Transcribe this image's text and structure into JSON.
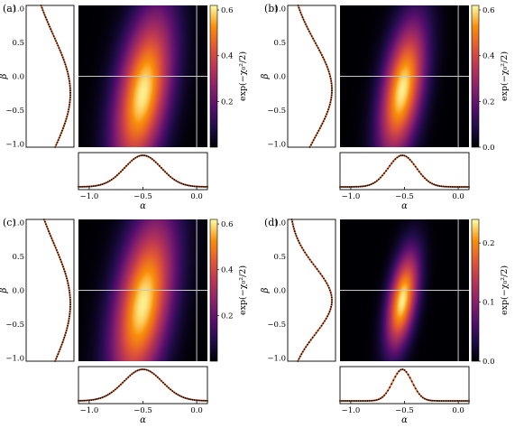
{
  "figure": {
    "shared": {
      "heatmap_ylabel": "β",
      "bottom_xlabel": "α",
      "colorbar_label": "exp(−χ₀²/2)",
      "alpha_ticks": [
        "−1.0",
        "−0.5",
        "0.0"
      ],
      "beta_ticks": [
        "1.0",
        "0.5",
        "0.0",
        "−0.5",
        "−1.0"
      ]
    },
    "panels": [
      {
        "label": "(a)",
        "cb_max": 0.62,
        "cb_ticks": [
          "0.6",
          "0.4",
          "0.2"
        ],
        "cb_values": [
          0.6,
          0.4,
          0.2
        ],
        "peak_alpha": -0.5,
        "peak_beta": -0.25,
        "sigma_alpha": 0.17,
        "sigma_beta": 0.85,
        "tilt": 0.55
      },
      {
        "label": "(b)",
        "cb_max": 0.62,
        "cb_ticks": [
          "0.6",
          "0.4",
          "0.2",
          "0.0"
        ],
        "cb_values": [
          0.6,
          0.4,
          0.2,
          0.0
        ],
        "peak_alpha": -0.52,
        "peak_beta": -0.2,
        "sigma_alpha": 0.13,
        "sigma_beta": 0.7,
        "tilt": 0.55
      },
      {
        "label": "(c)",
        "cb_max": 0.62,
        "cb_ticks": [
          "0.6",
          "0.4",
          "0.2"
        ],
        "cb_values": [
          0.6,
          0.4,
          0.2
        ],
        "peak_alpha": -0.5,
        "peak_beta": -0.2,
        "sigma_alpha": 0.18,
        "sigma_beta": 0.9,
        "tilt": 0.55
      },
      {
        "label": "(d)",
        "cb_max": 0.24,
        "cb_ticks": [
          "0.2",
          "0.1",
          "0.0"
        ],
        "cb_values": [
          0.2,
          0.1,
          0.0
        ],
        "peak_alpha": -0.52,
        "peak_beta": -0.15,
        "sigma_alpha": 0.09,
        "sigma_beta": 0.5,
        "tilt": 0.55
      }
    ]
  },
  "chart_data": {
    "type": "heatmap",
    "x_range": [
      -1.1,
      0.1
    ],
    "y_range": [
      -1.05,
      1.05
    ],
    "colormap": "inferno",
    "reference_lines": {
      "alpha": 0.0,
      "beta": 0.0
    },
    "marginals": "gaussian profiles: black dotted markers over orange curve"
  }
}
